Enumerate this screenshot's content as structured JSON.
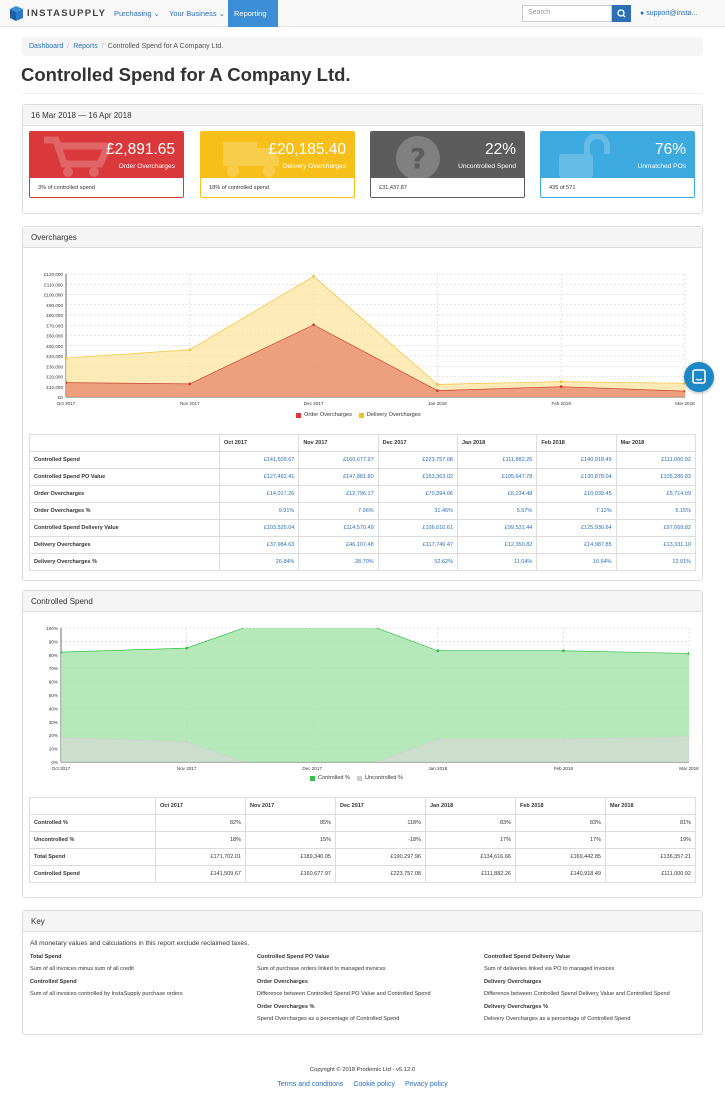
{
  "nav": {
    "brand": "INSTASUPPLY",
    "purchasing": "Purchasing",
    "business": "Your Business",
    "reporting": "Reporting",
    "search_placeholder": "Search",
    "user": "support@insta..."
  },
  "breadcrumb": {
    "dashboard": "Dashboard",
    "reports": "Reports",
    "current": "Controlled Spend for A Company Ltd."
  },
  "page_title": "Controlled Spend for A Company Ltd.",
  "summary": {
    "range": "16 Mar 2018 — 16 Apr 2018",
    "cards": [
      {
        "value": "£2,891.65",
        "label": "Order Overcharges",
        "foot": "3% of controlled spend",
        "color": "#d9393b"
      },
      {
        "value": "£20,185.40",
        "label": "Delivery Overcharges",
        "foot": "18% of controlled spend",
        "color": "#f7bf1a"
      },
      {
        "value": "22%",
        "label": "Uncontrolled Spend",
        "foot": "£31,437.87",
        "color": "#5c5c5c"
      },
      {
        "value": "76%",
        "label": "Unmatched POs",
        "foot": "435 of 571",
        "color": "#3ca9df"
      }
    ]
  },
  "overcharges": {
    "title": "Overcharges",
    "legend": [
      "Order Overcharges",
      "Delivery Overcharges"
    ],
    "months": [
      "Oct 2017",
      "Nov 2017",
      "Dec 2017",
      "Jan 2018",
      "Feb 2018",
      "Mar 2018"
    ],
    "rows": [
      {
        "label": "Controlled Spend",
        "values": [
          "£141,509.67",
          "£160,677.97",
          "£223,757.08",
          "£111,882.26",
          "£140,918.49",
          "£111,000.92"
        ]
      },
      {
        "label": "Controlled Spend PO Value",
        "values": [
          "£127,492.41",
          "£147,881.80",
          "£153,363.02",
          "£105,647.78",
          "£130,878.04",
          "£105,286.83"
        ]
      },
      {
        "label": "Order Overcharges",
        "values": [
          "£14,017.26",
          "£12,796.17",
          "£70,394.06",
          "£6,234.48",
          "£10,039.45",
          "£5,714.09"
        ]
      },
      {
        "label": "Order Overcharges %",
        "values": [
          "9.91%",
          "7.96%",
          "31.46%",
          "5.57%",
          "7.12%",
          "5.15%"
        ]
      },
      {
        "label": "Controlled Spend Delivery Value",
        "values": [
          "£103,525.04",
          "£114,570.49",
          "£106,010.61",
          "£99,531.44",
          "£125,930.64",
          "£97,669.82"
        ]
      },
      {
        "label": "Delivery Overcharges",
        "values": [
          "£37,984.63",
          "£46,107.48",
          "£117,746.47",
          "£12,350.82",
          "£14,987.85",
          "£13,331.10"
        ]
      },
      {
        "label": "Delivery Overcharges %",
        "values": [
          "26.84%",
          "28.70%",
          "52.62%",
          "11.04%",
          "10.64%",
          "12.01%"
        ]
      }
    ]
  },
  "spend": {
    "title": "Controlled Spend",
    "legend": [
      "Controlled %",
      "Uncontrolled %"
    ],
    "rows": [
      {
        "label": "Controlled %",
        "values": [
          "82%",
          "85%",
          "118%",
          "83%",
          "83%",
          "81%"
        ]
      },
      {
        "label": "Uncontrolled %",
        "values": [
          "18%",
          "15%",
          "-18%",
          "17%",
          "17%",
          "19%"
        ]
      },
      {
        "label": "Total Spend",
        "values": [
          "£171,702.01",
          "£189,340.05",
          "£190,297.96",
          "£134,616.66",
          "£169,442.85",
          "£136,357.21"
        ]
      },
      {
        "label": "Controlled Spend",
        "values": [
          "£141,509.67",
          "£160,677.97",
          "£223,757.08",
          "£111,882.26",
          "£140,918.49",
          "£111,000.92"
        ]
      }
    ]
  },
  "chart_data": [
    {
      "type": "area",
      "title": "Overcharges",
      "x": [
        "Oct 2017",
        "Nov 2017",
        "Dec 2017",
        "Jan 2018",
        "Feb 2018",
        "Mar 2018"
      ],
      "y_ticks": [
        "£0",
        "£10,000",
        "£20,000",
        "£30,000",
        "£40,000",
        "£50,000",
        "£60,000",
        "£70,000",
        "£80,000",
        "£90,000",
        "£100,000",
        "£110,000",
        "£120,000"
      ],
      "ylim": [
        0,
        120000
      ],
      "series": [
        {
          "name": "Order Overcharges",
          "values": [
            14017.26,
            12796.17,
            70394.06,
            6234.48,
            10039.45,
            5714.09
          ],
          "color": "#d9534f"
        },
        {
          "name": "Delivery Overcharges",
          "values": [
            37984.63,
            46107.48,
            117746.47,
            12350.82,
            14987.85,
            13331.1
          ],
          "color": "#f0ad4e"
        }
      ]
    },
    {
      "type": "area",
      "title": "Controlled Spend",
      "x": [
        "Oct 2017",
        "Nov 2017",
        "Dec 2017",
        "Jan 2018",
        "Feb 2018",
        "Mar 2018"
      ],
      "y_ticks": [
        "0%",
        "10%",
        "20%",
        "30%",
        "40%",
        "50%",
        "60%",
        "70%",
        "80%",
        "90%",
        "100%"
      ],
      "ylim": [
        0,
        100
      ],
      "series": [
        {
          "name": "Controlled %",
          "values": [
            82,
            85,
            118,
            83,
            83,
            81
          ],
          "color": "#5cb85c"
        },
        {
          "name": "Uncontrolled %",
          "values": [
            18,
            15,
            -18,
            17,
            17,
            19
          ],
          "color": "#cccccc"
        }
      ]
    }
  ],
  "key": {
    "title": "Key",
    "intro": "All monetary values and calculations in this report exclude reclaimed taxes.",
    "items": [
      {
        "t": "Total Spend",
        "d": "Sum of all invoices minus sum of all credit"
      },
      {
        "t": "Controlled Spend",
        "d": "Sum of all invoices controlled by InstaSupply purchase orders"
      },
      {
        "t": "Controlled Spend PO Value",
        "d": "Sum of purchase orders linked to managed invoices"
      },
      {
        "t": "Order Overcharges",
        "d": "Difference between Controlled Spend PO Value and Controlled Spend"
      },
      {
        "t": "Order Overcharges %",
        "d": "Spend Overcharges as a percentage of Controlled Spend"
      },
      {
        "t": "Controlled Spend Delivery Value",
        "d": "Sum of deliveries linked via PO to managed invoices"
      },
      {
        "t": "Delivery Overcharges",
        "d": "Difference between Controlled Spend Delivery Value and Controlled Spend"
      },
      {
        "t": "Delivery Overcharges %",
        "d": "Delivery Overcharges as a percentage of Controlled Spend"
      }
    ]
  },
  "footer": {
    "copyright": "Copyright © 2018 Prodemic Ltd - v5.12.0",
    "terms": "Terms and conditions",
    "cookie": "Cookie policy",
    "privacy": "Privacy policy"
  }
}
